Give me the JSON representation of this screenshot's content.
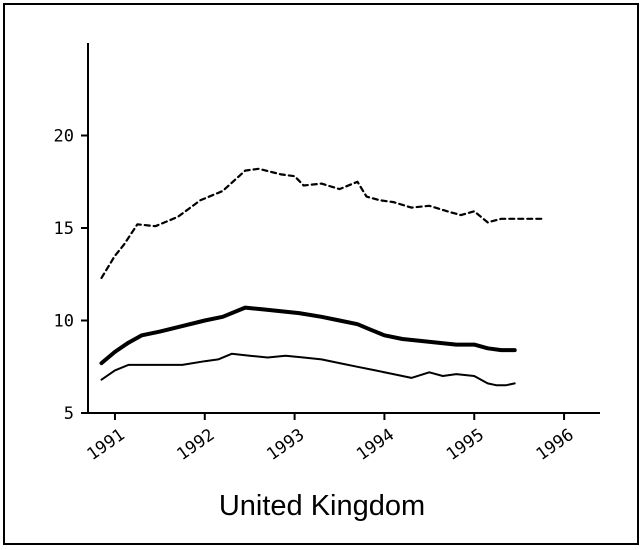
{
  "chart_data": {
    "type": "line",
    "title": "United Kingdom",
    "xlabel": "",
    "ylabel": "",
    "xlim": [
      1990.7,
      1996.4
    ],
    "ylim": [
      5,
      25
    ],
    "yticks": [
      5,
      10,
      15,
      20
    ],
    "ytick_labels": [
      "5",
      "10",
      "15",
      "20"
    ],
    "xticks": [
      1991,
      1992,
      1993,
      1994,
      1995,
      1996
    ],
    "xtick_labels": [
      "1991",
      "1992",
      "1993",
      "1994",
      "1995",
      "1996"
    ],
    "grid": false,
    "legend": "none",
    "series": [
      {
        "style": "dashed",
        "x": [
          1990.85,
          1991.0,
          1991.1,
          1991.25,
          1991.45,
          1991.7,
          1991.95,
          1992.2,
          1992.45,
          1992.6,
          1992.85,
          1993.0,
          1993.1,
          1993.3,
          1993.5,
          1993.7,
          1993.8,
          1993.95,
          1994.1,
          1994.3,
          1994.5,
          1994.7,
          1994.85,
          1995.0,
          1995.15,
          1995.3,
          1995.45,
          1995.6,
          1995.75
        ],
        "y": [
          12.3,
          13.5,
          14.1,
          15.2,
          15.1,
          15.6,
          16.5,
          17.0,
          18.1,
          18.2,
          17.9,
          17.8,
          17.3,
          17.4,
          17.1,
          17.5,
          16.7,
          16.5,
          16.4,
          16.1,
          16.2,
          15.9,
          15.7,
          15.9,
          15.3,
          15.5,
          15.5,
          15.5,
          15.5
        ]
      },
      {
        "style": "thick",
        "x": [
          1990.85,
          1991.0,
          1991.15,
          1991.3,
          1991.5,
          1991.75,
          1992.0,
          1992.2,
          1992.45,
          1992.65,
          1992.85,
          1993.05,
          1993.3,
          1993.5,
          1993.7,
          1993.85,
          1994.0,
          1994.2,
          1994.4,
          1994.6,
          1994.8,
          1995.0,
          1995.15,
          1995.3,
          1995.45
        ],
        "y": [
          7.7,
          8.3,
          8.8,
          9.2,
          9.4,
          9.7,
          10.0,
          10.2,
          10.7,
          10.6,
          10.5,
          10.4,
          10.2,
          10.0,
          9.8,
          9.5,
          9.2,
          9.0,
          8.9,
          8.8,
          8.7,
          8.7,
          8.5,
          8.4,
          8.4
        ]
      },
      {
        "style": "thin",
        "x": [
          1990.85,
          1991.0,
          1991.15,
          1991.35,
          1991.5,
          1991.75,
          1992.0,
          1992.15,
          1992.3,
          1992.5,
          1992.7,
          1992.9,
          1993.1,
          1993.3,
          1993.5,
          1993.7,
          1993.9,
          1994.1,
          1994.3,
          1994.5,
          1994.65,
          1994.8,
          1995.0,
          1995.15,
          1995.25,
          1995.35,
          1995.45
        ],
        "y": [
          6.8,
          7.3,
          7.6,
          7.6,
          7.6,
          7.6,
          7.8,
          7.9,
          8.2,
          8.1,
          8.0,
          8.1,
          8.0,
          7.9,
          7.7,
          7.5,
          7.3,
          7.1,
          6.9,
          7.2,
          7.0,
          7.1,
          7.0,
          6.6,
          6.5,
          6.5,
          6.6
        ]
      }
    ]
  }
}
